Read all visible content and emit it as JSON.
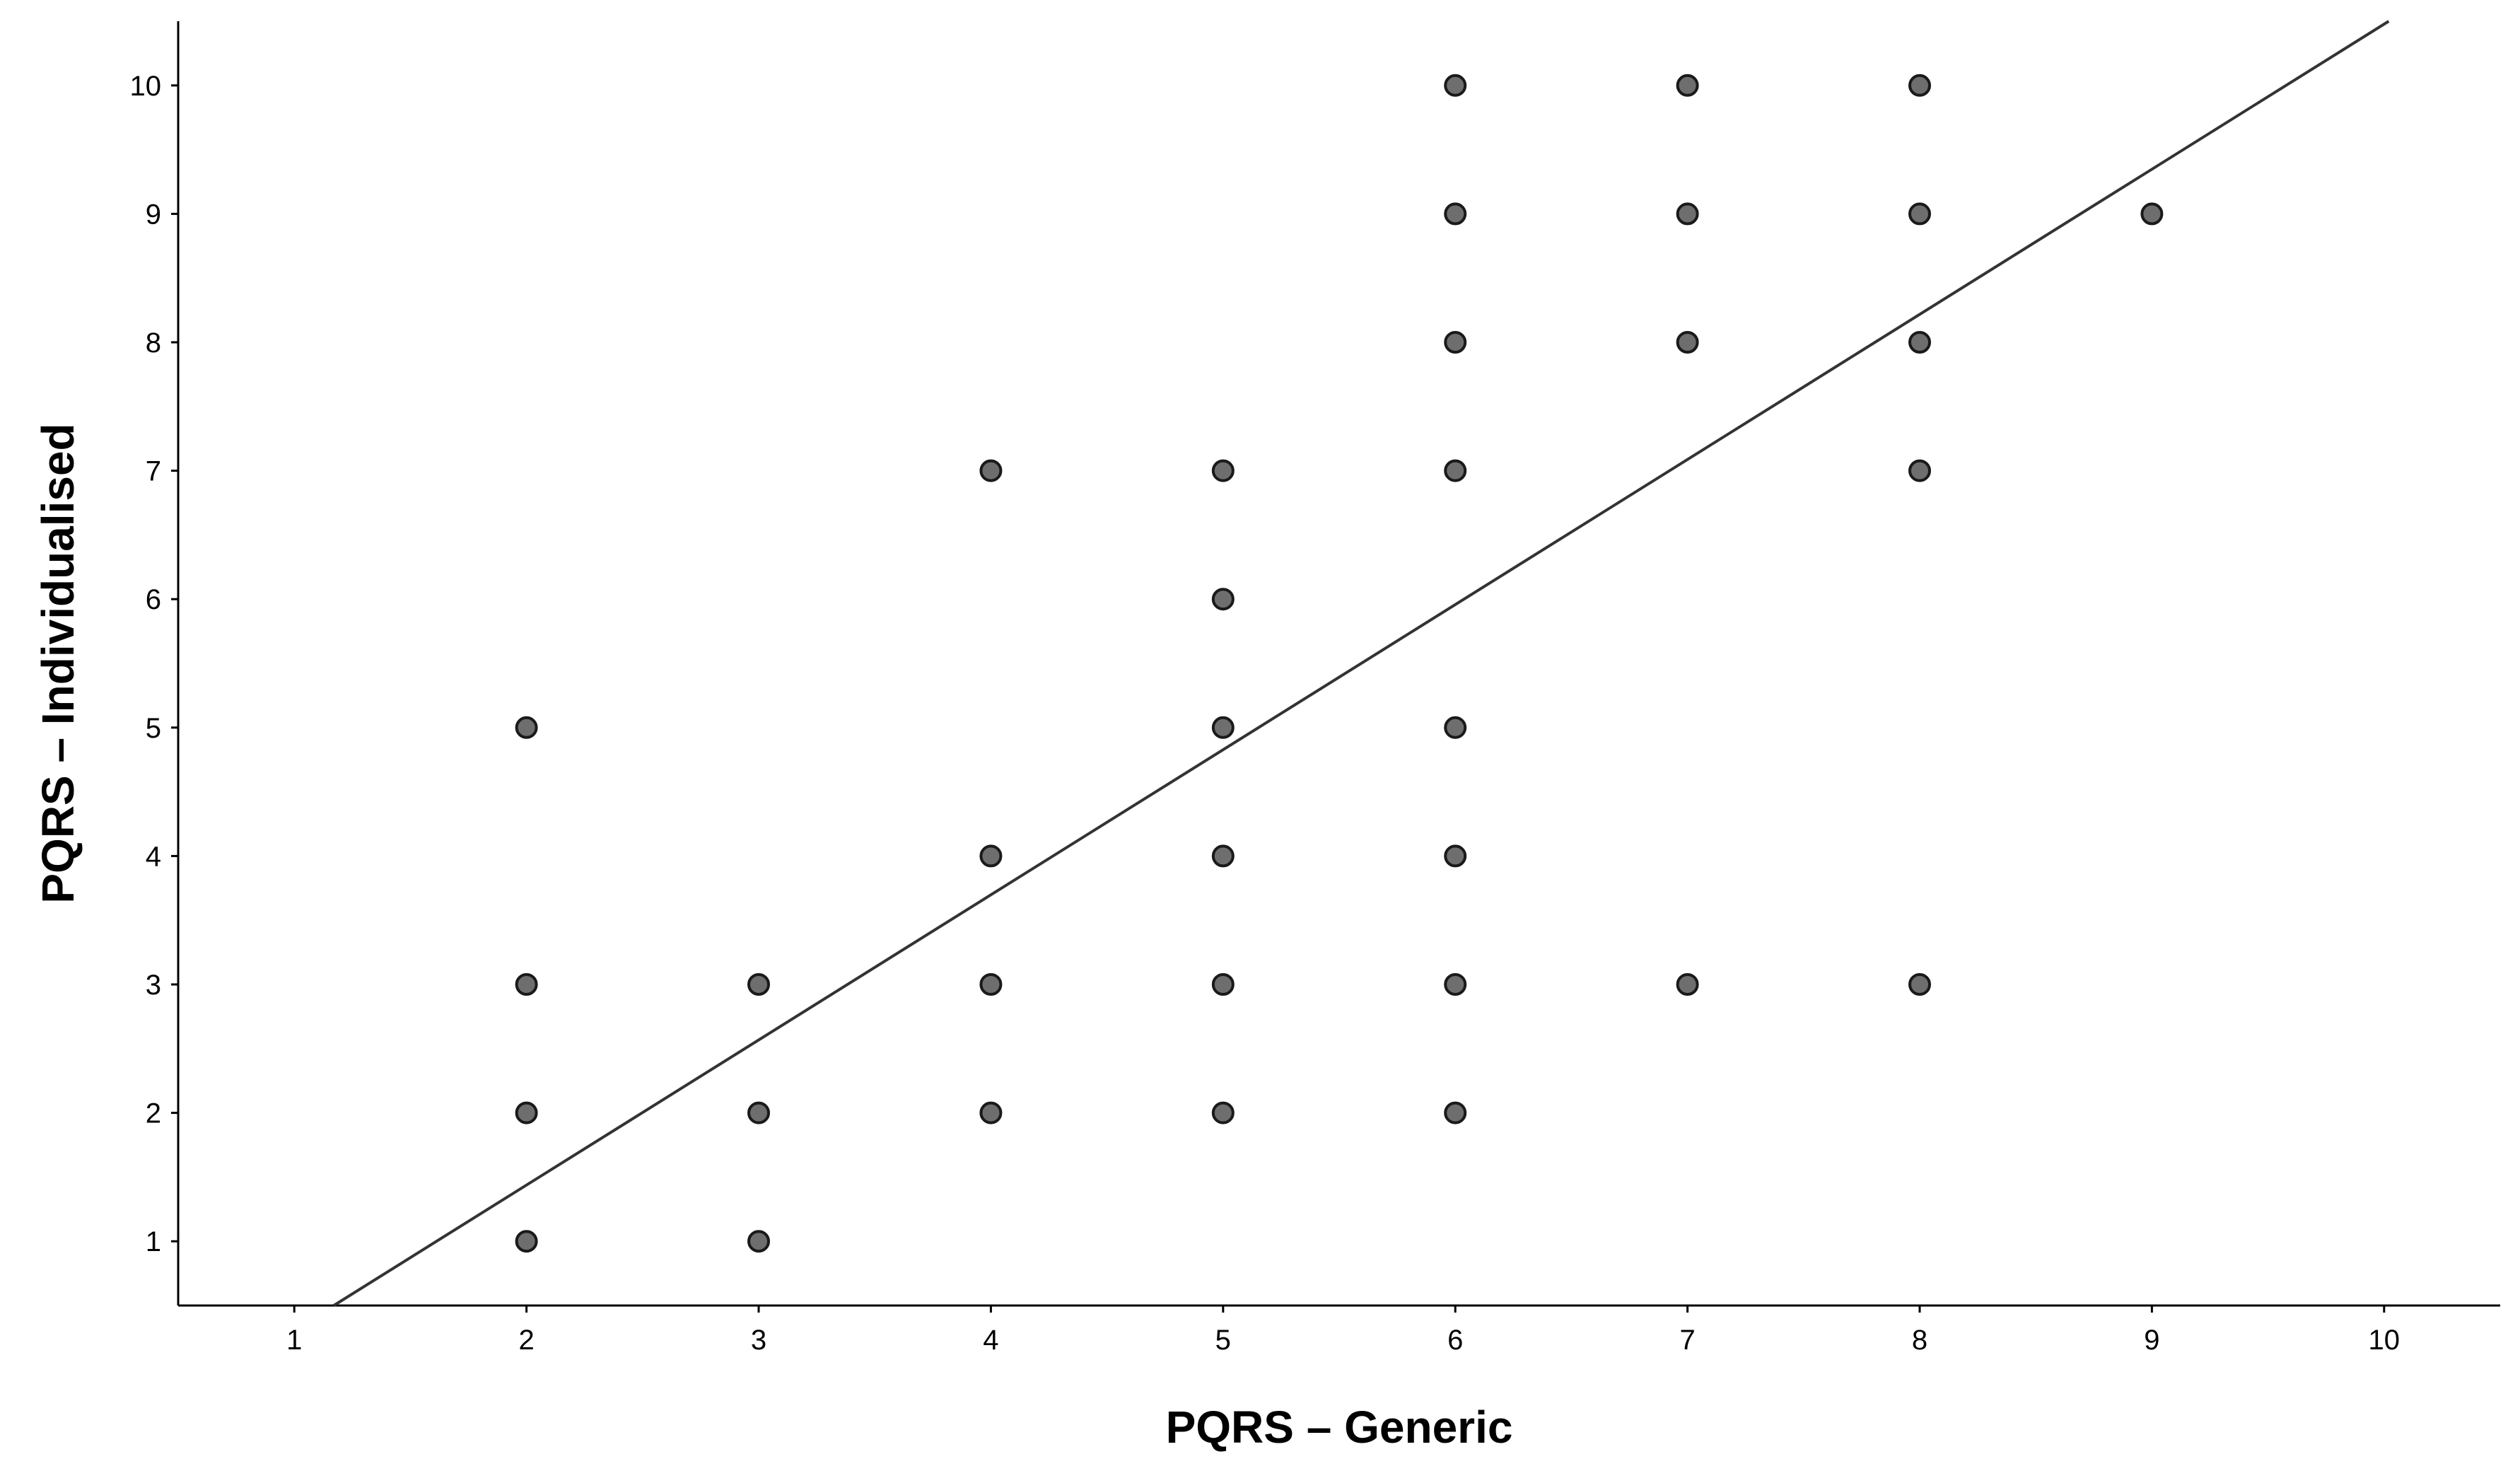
{
  "chart_data": {
    "type": "scatter",
    "title": "",
    "xlabel": "PQRS – Generic",
    "ylabel": "PQRS – Individualised",
    "xlim": [
      0.5,
      10.5
    ],
    "ylim": [
      0.5,
      10.5
    ],
    "x_ticks": [
      "1",
      "2",
      "3",
      "4",
      "5",
      "6",
      "7",
      "8",
      "9",
      "10"
    ],
    "y_ticks": [
      "1",
      "2",
      "3",
      "4",
      "5",
      "6",
      "7",
      "8",
      "9",
      "10"
    ],
    "grid": false,
    "legend": "none",
    "point_color": "#6e6e6e",
    "point_edge_color": "#1a1a1a",
    "line_color": "#333333",
    "points": [
      {
        "x": 2,
        "y": 1
      },
      {
        "x": 2,
        "y": 2
      },
      {
        "x": 2,
        "y": 3
      },
      {
        "x": 2,
        "y": 5
      },
      {
        "x": 3,
        "y": 1
      },
      {
        "x": 3,
        "y": 2
      },
      {
        "x": 3,
        "y": 3
      },
      {
        "x": 4,
        "y": 2
      },
      {
        "x": 4,
        "y": 3
      },
      {
        "x": 4,
        "y": 4
      },
      {
        "x": 4,
        "y": 7
      },
      {
        "x": 5,
        "y": 2
      },
      {
        "x": 5,
        "y": 3
      },
      {
        "x": 5,
        "y": 4
      },
      {
        "x": 5,
        "y": 5
      },
      {
        "x": 5,
        "y": 6
      },
      {
        "x": 5,
        "y": 7
      },
      {
        "x": 6,
        "y": 2
      },
      {
        "x": 6,
        "y": 3
      },
      {
        "x": 6,
        "y": 4
      },
      {
        "x": 6,
        "y": 5
      },
      {
        "x": 6,
        "y": 7
      },
      {
        "x": 6,
        "y": 8
      },
      {
        "x": 6,
        "y": 9
      },
      {
        "x": 6,
        "y": 10
      },
      {
        "x": 7,
        "y": 3
      },
      {
        "x": 7,
        "y": 8
      },
      {
        "x": 7,
        "y": 9
      },
      {
        "x": 7,
        "y": 10
      },
      {
        "x": 8,
        "y": 3
      },
      {
        "x": 8,
        "y": 7
      },
      {
        "x": 8,
        "y": 8
      },
      {
        "x": 8,
        "y": 9
      },
      {
        "x": 8,
        "y": 10
      },
      {
        "x": 9,
        "y": 9
      }
    ],
    "fit_line": {
      "x": [
        1.17,
        10.02
      ],
      "y": [
        0.5,
        10.5
      ]
    }
  }
}
